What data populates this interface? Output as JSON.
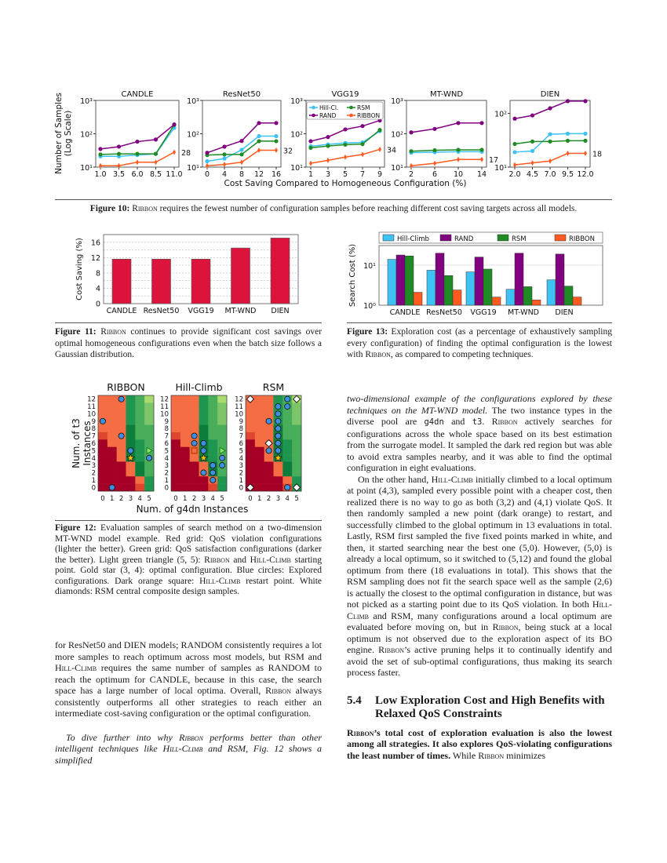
{
  "colors": {
    "hill_climb": "#3ec1f3",
    "rand": "#800080",
    "rsm": "#1f8b24",
    "ribbon": "#ff5a1f",
    "fig11_bar": "#dc143c"
  },
  "chart_data": [
    {
      "type": "line",
      "figure": "Figure 10",
      "ylabel": "Number of Samples (Log Scale)",
      "xlabel": "Cost Saving Compared to Homogeneous Configuration (%)",
      "yscale": "log",
      "legend": {
        "placement": "upper-left of VGG19 panel",
        "entries": [
          "Hill-Cl.",
          "RSM",
          "RAND",
          "RIBBON"
        ]
      },
      "panels": [
        {
          "title": "CANDLE",
          "x": [
            1.0,
            3.5,
            6.0,
            8.5,
            11.0
          ],
          "xticks": [
            "1.0",
            "3.5",
            "6.0",
            "8.5",
            "11.0"
          ],
          "ylim": [
            10,
            1000
          ],
          "yticks": [
            "10¹",
            "10²",
            "10³"
          ],
          "end_label": "28",
          "series": [
            {
              "name": "Hill-Cl.",
              "values": [
                21,
                21,
                23,
                25,
                150
              ]
            },
            {
              "name": "RSM",
              "values": [
                24,
                25,
                25,
                25,
                185
              ]
            },
            {
              "name": "RAND",
              "values": [
                35,
                41,
                58,
                67,
                190
              ]
            },
            {
              "name": "RIBBON",
              "values": [
                11,
                11,
                14,
                14,
                28
              ]
            }
          ]
        },
        {
          "title": "ResNet50",
          "x": [
            0,
            4,
            8,
            12,
            16
          ],
          "xticks": [
            "0",
            "4",
            "8",
            "12",
            "16"
          ],
          "ylim": [
            10,
            1000
          ],
          "yticks": [
            "10¹",
            "10²",
            "10³"
          ],
          "end_label": "32",
          "series": [
            {
              "name": "Hill-Cl.",
              "values": [
                15,
                18,
                33,
                85,
                85
              ]
            },
            {
              "name": "RSM",
              "values": [
                23,
                24,
                24,
                60,
                60
              ]
            },
            {
              "name": "RAND",
              "values": [
                27,
                41,
                61,
                210,
                210
              ]
            },
            {
              "name": "RIBBON",
              "values": [
                11,
                12,
                14,
                32,
                32
              ]
            }
          ]
        },
        {
          "title": "VGG19",
          "x": [
            1,
            3,
            5,
            7,
            9
          ],
          "xticks": [
            "1",
            "3",
            "5",
            "7",
            "9"
          ],
          "ylim": [
            10,
            1000
          ],
          "yticks": [
            "10¹",
            "10²",
            "10³"
          ],
          "end_label": "34",
          "series": [
            {
              "name": "Hill-Cl.",
              "values": [
                42,
                48,
                53,
                55,
                120
              ]
            },
            {
              "name": "RSM",
              "values": [
                38,
                43,
                47,
                49,
                130
              ]
            },
            {
              "name": "RAND",
              "values": [
                60,
                80,
                135,
                170,
                250
              ]
            },
            {
              "name": "RIBBON",
              "values": [
                13,
                16,
                20,
                24,
                34
              ]
            }
          ]
        },
        {
          "title": "MT-WND",
          "x": [
            2,
            6,
            10,
            14
          ],
          "xticks": [
            "2",
            "6",
            "10",
            "14"
          ],
          "ylim": [
            10,
            1000
          ],
          "yticks": [
            "10¹",
            "10²",
            "10³"
          ],
          "end_label": "17",
          "series": [
            {
              "name": "Hill-Cl.",
              "values": [
                27,
                28,
                29,
                29
              ]
            },
            {
              "name": "RSM",
              "values": [
                30,
                32,
                33,
                33
              ]
            },
            {
              "name": "RAND",
              "values": [
                110,
                140,
                210,
                210
              ]
            },
            {
              "name": "RIBBON",
              "values": [
                11,
                13,
                17,
                17
              ]
            }
          ]
        },
        {
          "title": "DIEN",
          "x": [
            2.0,
            4.5,
            7.0,
            9.5,
            12.0
          ],
          "xticks": [
            "2.0",
            "4.5",
            "7.0",
            "9.5",
            "12.0"
          ],
          "ylim": [
            10,
            175
          ],
          "yticks": [
            "10¹",
            "10²"
          ],
          "end_label": "18",
          "series": [
            {
              "name": "Hill-Cl.",
              "values": [
                19,
                20,
                41,
                42,
                42
              ]
            },
            {
              "name": "RSM",
              "values": [
                27,
                30,
                30,
                31,
                31
              ]
            },
            {
              "name": "RAND",
              "values": [
                80,
                92,
                125,
                170,
                170
              ]
            },
            {
              "name": "RIBBON",
              "values": [
                11,
                12,
                13,
                18,
                18
              ]
            }
          ]
        }
      ]
    },
    {
      "type": "bar",
      "figure": "Figure 11",
      "categories": [
        "CANDLE",
        "ResNet50",
        "VGG19",
        "MT-WND",
        "DIEN"
      ],
      "values": [
        11.6,
        11.6,
        11.6,
        14.5,
        17.1
      ],
      "ylabel": "Cost Saving (%)",
      "ylim": [
        0,
        18
      ],
      "yticks": [
        "0",
        "4",
        "8",
        "12",
        "16"
      ],
      "grid": true
    },
    {
      "type": "bar",
      "figure": "Figure 13",
      "categories": [
        "CANDLE",
        "ResNet50",
        "VGG19",
        "MT-WND",
        "DIEN"
      ],
      "ylabel": "Search Cost (%)",
      "yscale": "log",
      "ylim": [
        1,
        31
      ],
      "yticks": [
        "10⁰",
        "10¹"
      ],
      "grid": true,
      "legend": {
        "placement": "top",
        "entries": [
          "Hill-Climb",
          "RAND",
          "RSM",
          "RIBBON"
        ]
      },
      "series": [
        {
          "name": "Hill-Climb",
          "values": [
            14,
            7.5,
            6.8,
            2.5,
            4.3
          ]
        },
        {
          "name": "RAND",
          "values": [
            18,
            20,
            16,
            20,
            19
          ]
        },
        {
          "name": "RSM",
          "values": [
            17,
            5.5,
            8,
            2.9,
            3
          ]
        },
        {
          "name": "RIBBON",
          "values": [
            2.1,
            2.4,
            1.6,
            1.35,
            1.6
          ]
        }
      ]
    },
    {
      "type": "heatmap",
      "figure": "Figure 12",
      "xlabel": "Num. of g4dn Instances",
      "ylabel": "Num. of t3 Instances",
      "xticks": [
        "0",
        "1",
        "2",
        "3",
        "4",
        "5"
      ],
      "yticks": [
        "0",
        "1",
        "2",
        "3",
        "4",
        "5",
        "6",
        "7",
        "8",
        "9",
        "10",
        "11",
        "12"
      ],
      "cell_colors": {
        "a": "#a50026",
        "r": "#e0452f",
        "o": "#f46d43",
        "1": "#0d7d3c",
        "2": "#1e9650",
        "3": "#48ae5a",
        "4": "#7cc568",
        "5": "#a9db6f"
      },
      "grid_rows_top_to_bottom": [
        "ooo235",
        "ooo234",
        "ooo234",
        "ooo234",
        "ooo133",
        "roo133",
        "aoo123",
        "aao123",
        "aao123",
        "aaao13",
        "aaao13",
        "aaaao2",
        "aaaar2"
      ],
      "panels": [
        {
          "title": "RIBBON",
          "circles": [
            [
              1,
              0
            ],
            [
              0,
              9
            ],
            [
              2,
              12
            ],
            [
              2,
              7
            ],
            [
              3,
              5
            ],
            [
              5,
              4
            ]
          ],
          "star": [
            3,
            4
          ],
          "triangle": [
            5,
            5
          ],
          "squares": [],
          "diamonds": []
        },
        {
          "title": "Hill-Climb",
          "circles": [
            [
              2,
              7
            ],
            [
              2,
              6
            ],
            [
              3,
              6
            ],
            [
              3,
              5
            ],
            [
              3,
              2
            ],
            [
              4,
              3
            ],
            [
              4,
              2
            ],
            [
              4,
              1
            ],
            [
              5,
              4
            ],
            [
              5,
              3
            ]
          ],
          "star": [
            3,
            4
          ],
          "triangle": [
            5,
            5
          ],
          "squares": [
            [
              2,
              5
            ]
          ],
          "diamonds": []
        },
        {
          "title": "RSM",
          "circles": [
            [
              4,
              12
            ],
            [
              4,
              11
            ],
            [
              3,
              11
            ],
            [
              3,
              10
            ],
            [
              3,
              9
            ],
            [
              3,
              8
            ],
            [
              3,
              7
            ],
            [
              3,
              6
            ],
            [
              3,
              5
            ],
            [
              2,
              9
            ],
            [
              2,
              5
            ],
            [
              4,
              0
            ]
          ],
          "star": [
            3,
            4
          ],
          "triangle": null,
          "squares": [],
          "diamonds": [
            [
              0,
              12
            ],
            [
              5,
              12
            ],
            [
              2,
              6
            ],
            [
              0,
              0
            ],
            [
              5,
              0
            ]
          ]
        }
      ]
    }
  ],
  "captions": {
    "fig10": [
      {
        "t": "Figure 10:",
        "s": "b"
      },
      {
        "t": " "
      },
      {
        "t": "Ribbon",
        "s": "sc"
      },
      {
        "t": " requires the fewest number of configuration samples before reaching different cost saving targets across all models."
      }
    ],
    "fig11": [
      {
        "t": "Figure 11:",
        "s": "b"
      },
      {
        "t": " "
      },
      {
        "t": "Ribbon",
        "s": "sc"
      },
      {
        "t": " continues to provide significant cost savings over optimal homogeneous configurations even when the batch size follows a Gaussian distribution."
      }
    ],
    "fig13": [
      {
        "t": "Figure 13:",
        "s": "b"
      },
      {
        "t": " Exploration cost (as a percentage of exhaustively sampling every configuration) of finding the optimal configuration is the lowest with "
      },
      {
        "t": "Ribbon",
        "s": "sc"
      },
      {
        "t": ", as compared to competing techniques."
      }
    ],
    "fig12": [
      {
        "t": "Figure 12:",
        "s": "b"
      },
      {
        "t": " Evaluation samples of search method on a two-dimension MT-WND model example. Red grid: QoS violation configurations (lighter the better). Green grid: QoS satisfaction configurations (darker the better). Light green triangle (5, 5): "
      },
      {
        "t": "Ribbon",
        "s": "sc"
      },
      {
        "t": " and "
      },
      {
        "t": "Hill-Climb",
        "s": "sc"
      },
      {
        "t": " starting point. Gold star (3, 4): optimal configuration. Blue circles: Explored configurations. Dark orange square: "
      },
      {
        "t": "Hill-Climb",
        "s": "sc"
      },
      {
        "t": " restart point. White diamonds: RSM central composite design samples."
      }
    ]
  },
  "text": {
    "left_p1": [
      {
        "t": "for ResNet50 and DIEN models; RANDOM consistently requires a lot more samples to reach optimum across most models, but RSM and "
      },
      {
        "t": "Hill-Climb",
        "s": "sc"
      },
      {
        "t": " requires the same number of samples as RANDOM to reach the optimum for CANDLE, because in this case, the search space has a large number of local optima. Overall, "
      },
      {
        "t": "Ribbon",
        "s": "sc"
      },
      {
        "t": " always consistently outperforms all other strategies to reach either an intermediate cost-saving configuration or the optimal configuration."
      }
    ],
    "left_p2": [
      {
        "t": "To dive further into why ",
        "s": "i"
      },
      {
        "t": "Ribbon",
        "s": "i sc"
      },
      {
        "t": " performs better than other intelligent techniques like ",
        "s": "i"
      },
      {
        "t": "Hill-Climb",
        "s": "i sc"
      },
      {
        "t": " and RSM, Fig. 12 shows a simplified",
        "s": "i"
      }
    ],
    "right_p1": [
      {
        "t": "two-dimensional example of the configurations explored by these techniques on the MT-WND model.",
        "s": "i"
      },
      {
        "t": " The two instance types in the diverse pool are "
      },
      {
        "t": "g4dn",
        "s": "m"
      },
      {
        "t": " and "
      },
      {
        "t": "t3",
        "s": "m"
      },
      {
        "t": ". "
      },
      {
        "t": "Ribbon",
        "s": "sc"
      },
      {
        "t": " actively searches for configurations across the whole space based on its best estimation from the surrogate model. It sampled the dark red region but was able to avoid extra samples nearby, and it was able to find the optimal configuration in eight evaluations."
      }
    ],
    "right_p2": [
      {
        "t": "On the other hand, "
      },
      {
        "t": "Hill-Climb",
        "s": "sc"
      },
      {
        "t": " initially climbed to a local optimum at point (4,3), sampled every possible point with a cheaper cost, then realized there is no way to go as both (3,2) and (4,1) violate QoS. It then randomly sampled a new point (dark orange) to restart, and successfully climbed to the global optimum in 13 evaluations in total. Lastly, RSM first sampled the five fixed points marked in white, and then, it started searching near the best one (5,0). However, (5,0) is already a local optimum, so it switched to (5,12) and found the global optimum from there (18 evaluations in total). This shows that the RSM sampling does not fit the search space well as the sample (2,6) is actually the closest to the optimal configuration in distance, but was not picked as a starting point due to its QoS violation. In both "
      },
      {
        "t": "Hill-Climb",
        "s": "sc"
      },
      {
        "t": " and RSM, many configurations around a local optimum are evaluated before moving on, but in "
      },
      {
        "t": "Ribbon",
        "s": "sc"
      },
      {
        "t": ", being stuck at a local optimum is not observed due to the exploration aspect of its BO engine. "
      },
      {
        "t": "Ribbon",
        "s": "sc"
      },
      {
        "t": "’s active pruning helps it to continually identify and avoid the set of sub-optimal configurations, thus making its search process faster."
      }
    ],
    "section_number": "5.4",
    "section_title": "Low Exploration Cost and High Benefits with Relaxed QoS Constraints",
    "right_p3": [
      {
        "t": "Ribbon",
        "s": "b sc"
      },
      {
        "t": "’s total cost of exploration evaluation is also the lowest among all strategies. It also explores QoS-violating configurations the least number of times.",
        "s": "b"
      },
      {
        "t": " While "
      },
      {
        "t": "Ribbon",
        "s": "sc"
      },
      {
        "t": " minimizes"
      }
    ]
  }
}
